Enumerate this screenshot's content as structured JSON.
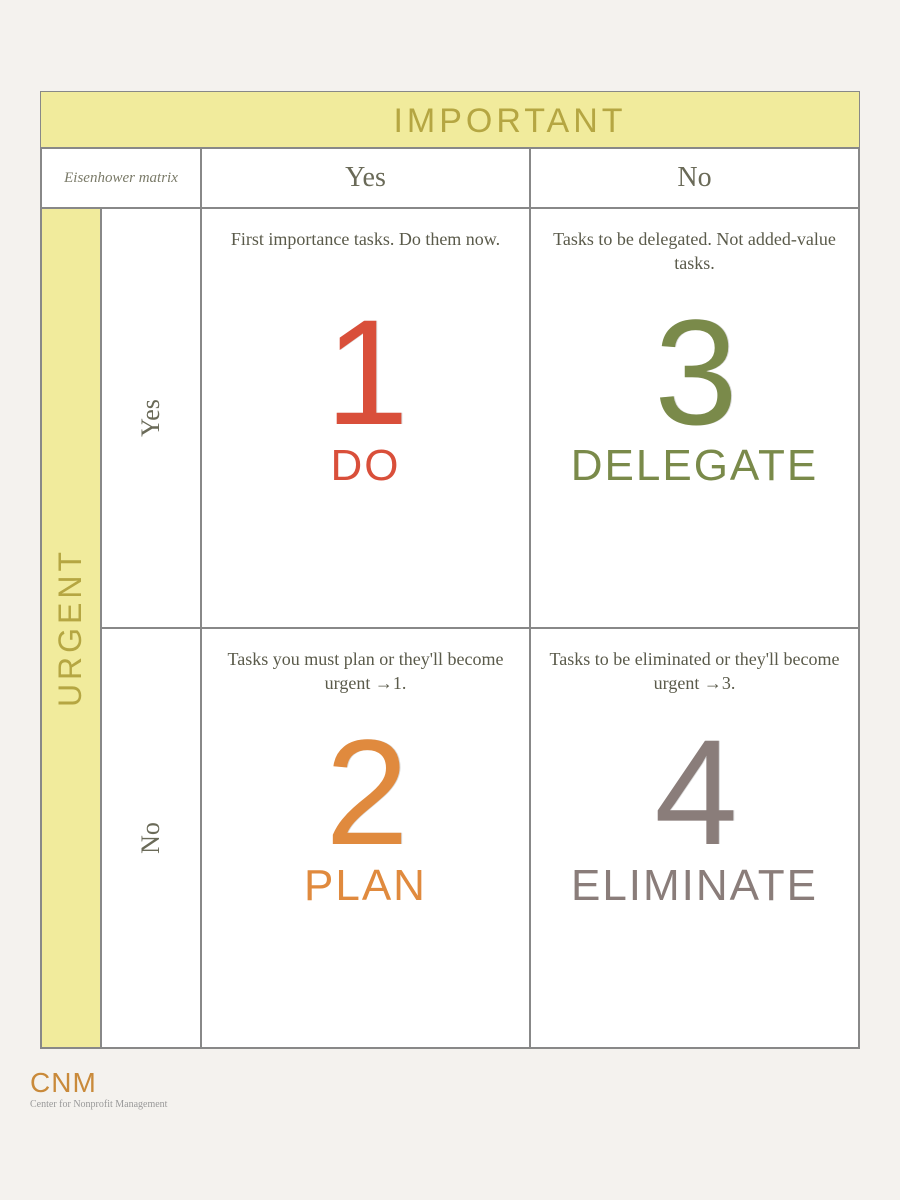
{
  "matrix": {
    "title_top": "IMPORTANT",
    "title_side": "URGENT",
    "corner_label": "Eisenhower matrix",
    "col_labels": {
      "yes": "Yes",
      "no": "No"
    },
    "row_labels": {
      "yes": "Yes",
      "no": "No"
    },
    "header_bg": "#f1eb9c",
    "header_text_color": "#b5a642",
    "border_color": "#888888",
    "background": "#ffffff",
    "desc_color": "#5a5a4a",
    "desc_fontsize": 18,
    "title_fontsize": 34,
    "bignum_fontsize": 150,
    "action_fontsize": 44,
    "quadrants": {
      "q1": {
        "desc": "First importance tasks. Do them now.",
        "number": "1",
        "action": "DO",
        "color": "#d94f3a"
      },
      "q3": {
        "desc": "Tasks to be delegated. Not added-value tasks.",
        "number": "3",
        "action": "DELEGATE",
        "color": "#7a8a4a"
      },
      "q2": {
        "desc": "Tasks you must plan or they'll become urgent →1.",
        "number": "2",
        "action": "PLAN",
        "color": "#e08a3e"
      },
      "q4": {
        "desc": "Tasks to be eliminated or they'll become urgent →3.",
        "number": "4",
        "action": "ELIMINATE",
        "color": "#8a7d7a"
      }
    }
  },
  "footer": {
    "abbr": "CNM",
    "sub": "Center for Nonprofit Management"
  }
}
